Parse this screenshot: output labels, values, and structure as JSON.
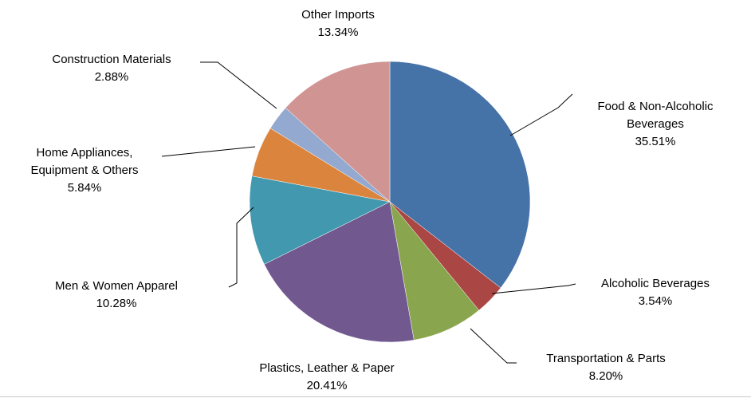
{
  "chart_data": {
    "type": "pie",
    "title": "",
    "slices": [
      {
        "name": "Food & Non-Alcoholic Beverages",
        "label_lines": [
          "Food & Non-Alcoholic",
          "Beverages"
        ],
        "pct_label": "35.51%",
        "value": 35.51,
        "color": "#4572A7"
      },
      {
        "name": "Alcoholic Beverages",
        "label_lines": [
          "Alcoholic Beverages"
        ],
        "pct_label": "3.54%",
        "value": 3.54,
        "color": "#AA4643"
      },
      {
        "name": "Transportation & Parts",
        "label_lines": [
          "Transportation & Parts"
        ],
        "pct_label": "8.20%",
        "value": 8.2,
        "color": "#89A54E"
      },
      {
        "name": "Plastics, Leather & Paper",
        "label_lines": [
          "Plastics, Leather & Paper"
        ],
        "pct_label": "20.41%",
        "value": 20.41,
        "color": "#71588F"
      },
      {
        "name": "Men & Women Apparel",
        "label_lines": [
          "Men & Women Apparel"
        ],
        "pct_label": "10.28%",
        "value": 10.28,
        "color": "#4198AF"
      },
      {
        "name": "Home Appliances, Equipment & Others",
        "label_lines": [
          "Home Appliances,",
          "Equipment & Others"
        ],
        "pct_label": "5.84%",
        "value": 5.84,
        "color": "#DB843D"
      },
      {
        "name": "Construction Materials",
        "label_lines": [
          "Construction Materials"
        ],
        "pct_label": "2.88%",
        "value": 2.88,
        "color": "#93A9CF"
      },
      {
        "name": "Other Imports",
        "label_lines": [
          "Other Imports"
        ],
        "pct_label": "13.34%",
        "value": 13.34,
        "color": "#D09493"
      }
    ]
  }
}
